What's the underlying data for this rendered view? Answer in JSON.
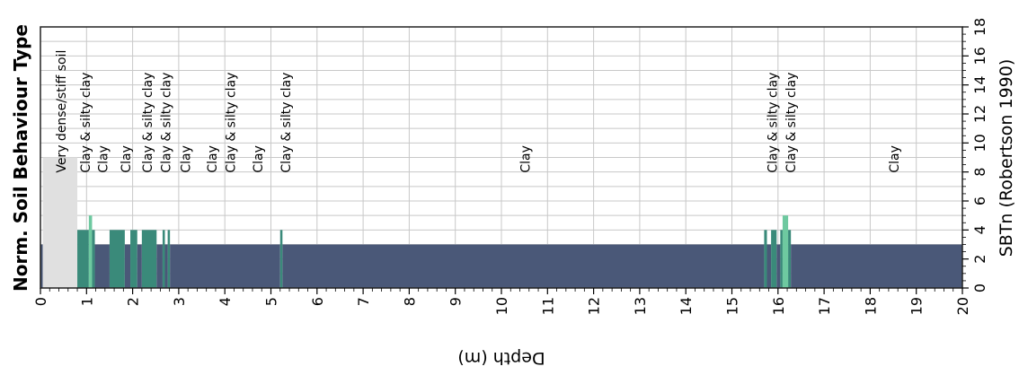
{
  "chart_data": {
    "type": "bar",
    "title": "Norm. Soil Behaviour Type",
    "xlabel": "Depth (m)",
    "ylabel": "SBTn (Robertson 1990)",
    "xlim": [
      0,
      20
    ],
    "ylim": [
      0,
      18
    ],
    "x_ticks": [
      "0",
      "1",
      "2",
      "3",
      "4",
      "5",
      "6",
      "7",
      "8",
      "9",
      "10",
      "11",
      "12",
      "13",
      "14",
      "15",
      "16",
      "17",
      "18",
      "19",
      "20"
    ],
    "y_ticks": [
      "0",
      "2",
      "4",
      "6",
      "8",
      "10",
      "12",
      "14",
      "16",
      "18"
    ],
    "grid": true,
    "colors": {
      "clay": "#4a5878",
      "silty_clay": "#3a8a7a",
      "clayey_silt": "#6ec9a0",
      "very_dense": "#e0e0e0"
    },
    "segments": [
      {
        "from": 0.0,
        "to": 0.05,
        "value": 3,
        "color": "#4a5878"
      },
      {
        "from": 0.05,
        "to": 0.8,
        "value": 9,
        "color": "#e0e0e0"
      },
      {
        "from": 0.8,
        "to": 1.05,
        "value": 4,
        "color": "#3a8a7a"
      },
      {
        "from": 1.05,
        "to": 1.12,
        "value": 5,
        "color": "#6ec9a0"
      },
      {
        "from": 1.12,
        "to": 1.18,
        "value": 4,
        "color": "#3a8a7a"
      },
      {
        "from": 1.18,
        "to": 1.5,
        "value": 3,
        "color": "#4a5878"
      },
      {
        "from": 1.5,
        "to": 1.83,
        "value": 4,
        "color": "#3a8a7a"
      },
      {
        "from": 1.83,
        "to": 1.95,
        "value": 3,
        "color": "#4a5878"
      },
      {
        "from": 1.95,
        "to": 2.1,
        "value": 4,
        "color": "#3a8a7a"
      },
      {
        "from": 2.1,
        "to": 2.2,
        "value": 3,
        "color": "#4a5878"
      },
      {
        "from": 2.2,
        "to": 2.52,
        "value": 4,
        "color": "#3a8a7a"
      },
      {
        "from": 2.52,
        "to": 2.65,
        "value": 3,
        "color": "#4a5878"
      },
      {
        "from": 2.65,
        "to": 2.7,
        "value": 4,
        "color": "#3a8a7a"
      },
      {
        "from": 2.7,
        "to": 2.76,
        "value": 3,
        "color": "#4a5878"
      },
      {
        "from": 2.76,
        "to": 2.81,
        "value": 4,
        "color": "#3a8a7a"
      },
      {
        "from": 2.81,
        "to": 5.2,
        "value": 3,
        "color": "#4a5878"
      },
      {
        "from": 5.2,
        "to": 5.25,
        "value": 4,
        "color": "#3a8a7a"
      },
      {
        "from": 5.25,
        "to": 15.7,
        "value": 3,
        "color": "#4a5878"
      },
      {
        "from": 15.7,
        "to": 15.76,
        "value": 4,
        "color": "#3a8a7a"
      },
      {
        "from": 15.76,
        "to": 15.85,
        "value": 3,
        "color": "#4a5878"
      },
      {
        "from": 15.85,
        "to": 15.97,
        "value": 4,
        "color": "#3a8a7a"
      },
      {
        "from": 15.97,
        "to": 16.05,
        "value": 3,
        "color": "#4a5878"
      },
      {
        "from": 16.05,
        "to": 16.1,
        "value": 4,
        "color": "#3a8a7a"
      },
      {
        "from": 16.1,
        "to": 16.22,
        "value": 5,
        "color": "#6ec9a0"
      },
      {
        "from": 16.22,
        "to": 16.28,
        "value": 4,
        "color": "#3a8a7a"
      },
      {
        "from": 16.28,
        "to": 20.0,
        "value": 3,
        "color": "#4a5878"
      }
    ],
    "annotations": [
      {
        "x": 0.45,
        "text": "Very dense/stiff soil"
      },
      {
        "x": 0.97,
        "text": "Clay & silty clay"
      },
      {
        "x": 1.35,
        "text": "Clay"
      },
      {
        "x": 1.85,
        "text": "Clay"
      },
      {
        "x": 2.32,
        "text": "Clay & silty clay"
      },
      {
        "x": 2.72,
        "text": "Clay & silty clay"
      },
      {
        "x": 3.15,
        "text": "Clay"
      },
      {
        "x": 3.72,
        "text": "Clay"
      },
      {
        "x": 4.12,
        "text": "Clay & silty clay"
      },
      {
        "x": 4.72,
        "text": "Clay"
      },
      {
        "x": 5.32,
        "text": "Clay & silty clay"
      },
      {
        "x": 10.52,
        "text": "Clay"
      },
      {
        "x": 15.88,
        "text": "Clay & silty clay"
      },
      {
        "x": 16.28,
        "text": "Clay & silty clay"
      },
      {
        "x": 18.52,
        "text": "Clay"
      }
    ]
  }
}
